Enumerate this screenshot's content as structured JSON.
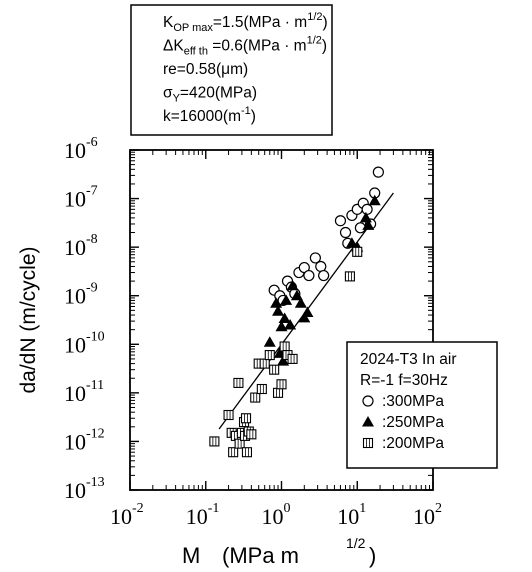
{
  "chart_data": {
    "type": "scatter",
    "scale": {
      "x": "log",
      "y": "log"
    },
    "xlim": [
      0.01,
      100
    ],
    "ylim": [
      1e-13,
      1e-06
    ],
    "xlabel_main": "M",
    "xlabel_units": "(MPa m",
    "xlabel_exp": "1/2",
    "xlabel_close": ")",
    "ylabel": "da/dN  (m/cycle)",
    "x_ticks": [
      {
        "value": 0.01,
        "base": "10",
        "exp": "-2"
      },
      {
        "value": 0.1,
        "base": "10",
        "exp": "-1"
      },
      {
        "value": 1,
        "base": "10",
        "exp": "0"
      },
      {
        "value": 10,
        "base": "10",
        "exp": "1"
      },
      {
        "value": 100,
        "base": "10",
        "exp": "2"
      }
    ],
    "y_ticks": [
      {
        "value": 1e-06,
        "base": "10",
        "exp": "-6"
      },
      {
        "value": 1e-07,
        "base": "10",
        "exp": "-7"
      },
      {
        "value": 1e-08,
        "base": "10",
        "exp": "-8"
      },
      {
        "value": 1e-09,
        "base": "10",
        "exp": "-9"
      },
      {
        "value": 1e-10,
        "base": "10",
        "exp": "-10"
      },
      {
        "value": 1e-11,
        "base": "10",
        "exp": "-11"
      },
      {
        "value": 1e-12,
        "base": "10",
        "exp": "-12"
      },
      {
        "value": 1e-13,
        "base": "10",
        "exp": "-13"
      }
    ],
    "parameters": [
      {
        "main": "K",
        "sub": "OP max",
        "rest": "=1.5(MPa · m",
        "sup": "1/2",
        "end": ")"
      },
      {
        "main": "ΔK",
        "sub": "eff th",
        "rest": " =0.6(MPa · m",
        "sup": "1/2",
        "end": ")"
      },
      {
        "main": "re=0.58(",
        "sub": "",
        "rest": "μm)",
        "sup": "",
        "end": ""
      },
      {
        "main": "σ",
        "sub": "Y",
        "rest": "=420(MPa)",
        "sup": "",
        "end": ""
      },
      {
        "main": "k=16000(m",
        "sub": "",
        "rest": "",
        "sup": "-1",
        "end": ")"
      }
    ],
    "legend": {
      "placement": "lower-right",
      "title_line1": "2024-T3  In air",
      "title_line2": "R=-1  f=30Hz",
      "entries": [
        {
          "marker": "circle",
          "label": ":300MPa"
        },
        {
          "marker": "triangle",
          "label": ":250MPa"
        },
        {
          "marker": "square",
          "label": ":200MPa"
        }
      ]
    },
    "fit_line": {
      "x": [
        0.15,
        30
      ],
      "y": [
        1.8e-12,
        1.3e-07
      ]
    },
    "series": [
      {
        "marker": "circle",
        "stress": ":300MPa",
        "points": [
          [
            0.8,
            1.3e-09
          ],
          [
            0.95,
            1e-09
          ],
          [
            1.05,
            8e-10
          ],
          [
            1.2,
            2e-09
          ],
          [
            1.35,
            1.5e-09
          ],
          [
            1.5,
            1.1e-09
          ],
          [
            1.7,
            3e-09
          ],
          [
            2.0,
            3.8e-09
          ],
          [
            2.3,
            2.6e-09
          ],
          [
            2.8,
            6e-09
          ],
          [
            3.3,
            4e-09
          ],
          [
            3.6,
            2.6e-09
          ],
          [
            6.0,
            3.5e-08
          ],
          [
            7.0,
            2e-08
          ],
          [
            7.5,
            1.2e-08
          ],
          [
            8.5,
            4.5e-08
          ],
          [
            10.0,
            6e-08
          ],
          [
            11.0,
            2.5e-08
          ],
          [
            12.0,
            8e-08
          ],
          [
            13.5,
            6e-08
          ],
          [
            15.0,
            3e-08
          ],
          [
            17.0,
            1.3e-07
          ],
          [
            19.0,
            3.5e-07
          ]
        ]
      },
      {
        "marker": "triangle",
        "stress": ":250MPa",
        "points": [
          [
            0.7,
            1.1e-10
          ],
          [
            0.85,
            7e-10
          ],
          [
            0.9,
            4.8e-10
          ],
          [
            1.0,
            2.3e-10
          ],
          [
            1.1,
            3.4e-10
          ],
          [
            1.15,
            8e-10
          ],
          [
            1.3,
            2.5e-10
          ],
          [
            1.4,
            1.6e-09
          ],
          [
            1.6,
            1e-09
          ],
          [
            1.8,
            7e-10
          ],
          [
            2.0,
            3.5e-10
          ],
          [
            2.2,
            4.5e-10
          ],
          [
            0.95,
            6.5e-11
          ],
          [
            1.05,
            4.5e-11
          ],
          [
            8.5,
            1.2e-08
          ],
          [
            10.0,
            1e-08
          ],
          [
            13.0,
            4e-08
          ],
          [
            14.0,
            2.8e-08
          ],
          [
            17.0,
            9e-08
          ]
        ]
      },
      {
        "marker": "square",
        "stress": ":200MPa",
        "points": [
          [
            0.13,
            1e-12
          ],
          [
            0.2,
            3.5e-12
          ],
          [
            0.22,
            1.5e-12
          ],
          [
            0.23,
            6e-13
          ],
          [
            0.25,
            1.3e-12
          ],
          [
            0.27,
            1.6e-11
          ],
          [
            0.28,
            9e-13
          ],
          [
            0.3,
            1.5e-12
          ],
          [
            0.32,
            2.5e-12
          ],
          [
            0.33,
            1.3e-12
          ],
          [
            0.34,
            3e-12
          ],
          [
            0.35,
            6e-13
          ],
          [
            0.37,
            1.6e-12
          ],
          [
            0.4,
            1.4e-12
          ],
          [
            0.45,
            8e-12
          ],
          [
            0.5,
            4e-11
          ],
          [
            0.55,
            1.2e-11
          ],
          [
            0.6,
            4e-11
          ],
          [
            0.7,
            6e-11
          ],
          [
            0.8,
            3e-11
          ],
          [
            0.9,
            1e-11
          ],
          [
            1.0,
            1.5e-11
          ],
          [
            1.1,
            9e-11
          ],
          [
            1.2,
            6e-11
          ],
          [
            1.4,
            5e-11
          ],
          [
            8.0,
            2.5e-09
          ],
          [
            10.0,
            8e-09
          ]
        ]
      }
    ]
  }
}
